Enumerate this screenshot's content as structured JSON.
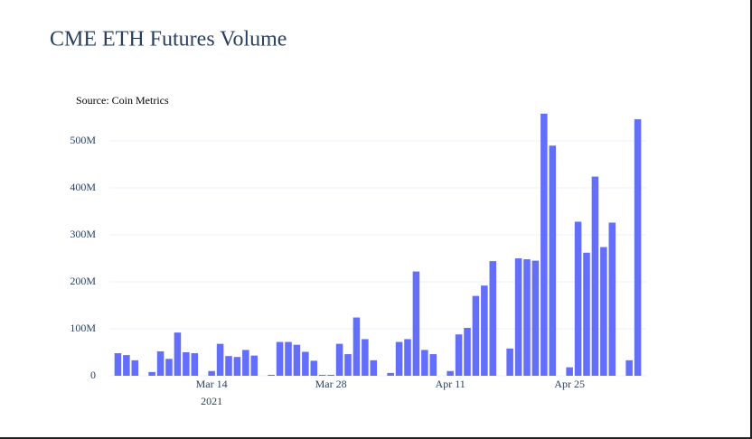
{
  "chart_data": {
    "type": "bar",
    "title": "CME ETH Futures Volume",
    "annotation": "Source: Coin Metrics",
    "color": "#636efa",
    "grid": true,
    "x": [
      "2021-03-03",
      "2021-03-04",
      "2021-03-05",
      "2021-03-07",
      "2021-03-08",
      "2021-03-09",
      "2021-03-10",
      "2021-03-11",
      "2021-03-12",
      "2021-03-14",
      "2021-03-15",
      "2021-03-16",
      "2021-03-17",
      "2021-03-18",
      "2021-03-19",
      "2021-03-21",
      "2021-03-22",
      "2021-03-23",
      "2021-03-24",
      "2021-03-25",
      "2021-03-26",
      "2021-03-27",
      "2021-03-28",
      "2021-03-29",
      "2021-03-30",
      "2021-03-31",
      "2021-04-01",
      "2021-04-02",
      "2021-04-04",
      "2021-04-05",
      "2021-04-06",
      "2021-04-07",
      "2021-04-08",
      "2021-04-09",
      "2021-04-11",
      "2021-04-12",
      "2021-04-13",
      "2021-04-14",
      "2021-04-15",
      "2021-04-16",
      "2021-04-18",
      "2021-04-19",
      "2021-04-20",
      "2021-04-21",
      "2021-04-22",
      "2021-04-23",
      "2021-04-25",
      "2021-04-26",
      "2021-04-27",
      "2021-04-28",
      "2021-04-29",
      "2021-04-30",
      "2021-05-02",
      "2021-05-03"
    ],
    "values": [
      48000000,
      44000000,
      33000000,
      8000000,
      52000000,
      36000000,
      92000000,
      50000000,
      48000000,
      10000000,
      68000000,
      42000000,
      40000000,
      55000000,
      43000000,
      2000000,
      72000000,
      72000000,
      66000000,
      51000000,
      32000000,
      2000000,
      2000000,
      68000000,
      46000000,
      124000000,
      78000000,
      33000000,
      6000000,
      72000000,
      78000000,
      222000000,
      55000000,
      46000000,
      10000000,
      88000000,
      102000000,
      170000000,
      192000000,
      244000000,
      58000000,
      250000000,
      248000000,
      245000000,
      558000000,
      490000000,
      18000000,
      328000000,
      262000000,
      424000000,
      274000000,
      326000000,
      33000000,
      546000000
    ],
    "xlim": [
      "2021-03-02",
      "2021-05-04"
    ],
    "xticks": [
      {
        "value": "2021-03-14",
        "label": "Mar 14"
      },
      {
        "value": "2021-03-28",
        "label": "Mar 28"
      },
      {
        "value": "2021-04-11",
        "label": "Apr 11"
      },
      {
        "value": "2021-04-25",
        "label": "Apr 25"
      }
    ],
    "x_year_label": "2021",
    "ylim": [
      0,
      570000000
    ],
    "yticks": [
      0,
      {
        "value": 100000000,
        "label": "100M"
      },
      {
        "value": 200000000,
        "label": "200M"
      },
      {
        "value": 300000000,
        "label": "300M"
      },
      {
        "value": 400000000,
        "label": "400M"
      },
      {
        "value": 500000000,
        "label": "500M"
      }
    ]
  }
}
